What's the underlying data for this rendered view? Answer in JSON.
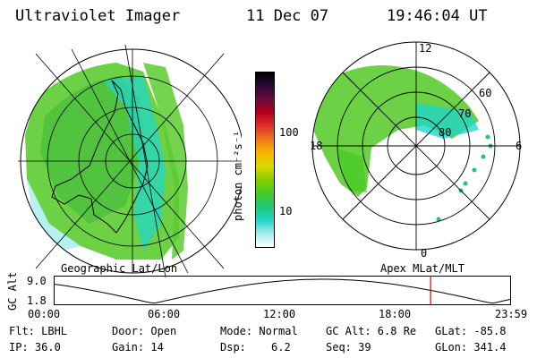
{
  "header": {
    "instrument": "Ultraviolet Imager",
    "date": "11 Dec 07",
    "time": "19:46:04 UT"
  },
  "geo_panel": {
    "label": "Geographic Lat/Lon"
  },
  "colorbar": {
    "unit_label": "photon cm⁻²s⁻¹",
    "ticks": [
      "100",
      "10"
    ],
    "colors": [
      "#000000",
      "#2a0a3a",
      "#6a0a3a",
      "#b8001e",
      "#e0302a",
      "#f07a1a",
      "#f8b400",
      "#d8d800",
      "#8ccc00",
      "#44cc22",
      "#1ec878",
      "#22d6c8",
      "#a4ecec",
      "#ffffff"
    ]
  },
  "apex_panel": {
    "label": "Apex MLat/MLT",
    "mlt_labels": {
      "top": "12",
      "left": "18",
      "right": "6",
      "bottom": "0"
    },
    "lat_labels": [
      "60",
      "70",
      "80"
    ]
  },
  "timeline": {
    "axis_label": "GC Alt",
    "y_ticks": [
      "9.0",
      "1.8"
    ],
    "x_ticks": [
      "00:00",
      "06:00",
      "12:00",
      "18:00",
      "23:59"
    ],
    "current_hour": 19.77
  },
  "info": {
    "flt": "Flt: LBHL",
    "ip": "IP: 36.0",
    "door": "Door: Open",
    "gain": "Gain: 14",
    "mode": "Mode: Normal",
    "dsp_label": "Dsp:",
    "dsp_value": "6.2",
    "gcalt": "GC Alt: 6.8 Re",
    "seq": "Seq: 39",
    "glat": "GLat: -85.8",
    "glon": "GLon: 341.4"
  }
}
